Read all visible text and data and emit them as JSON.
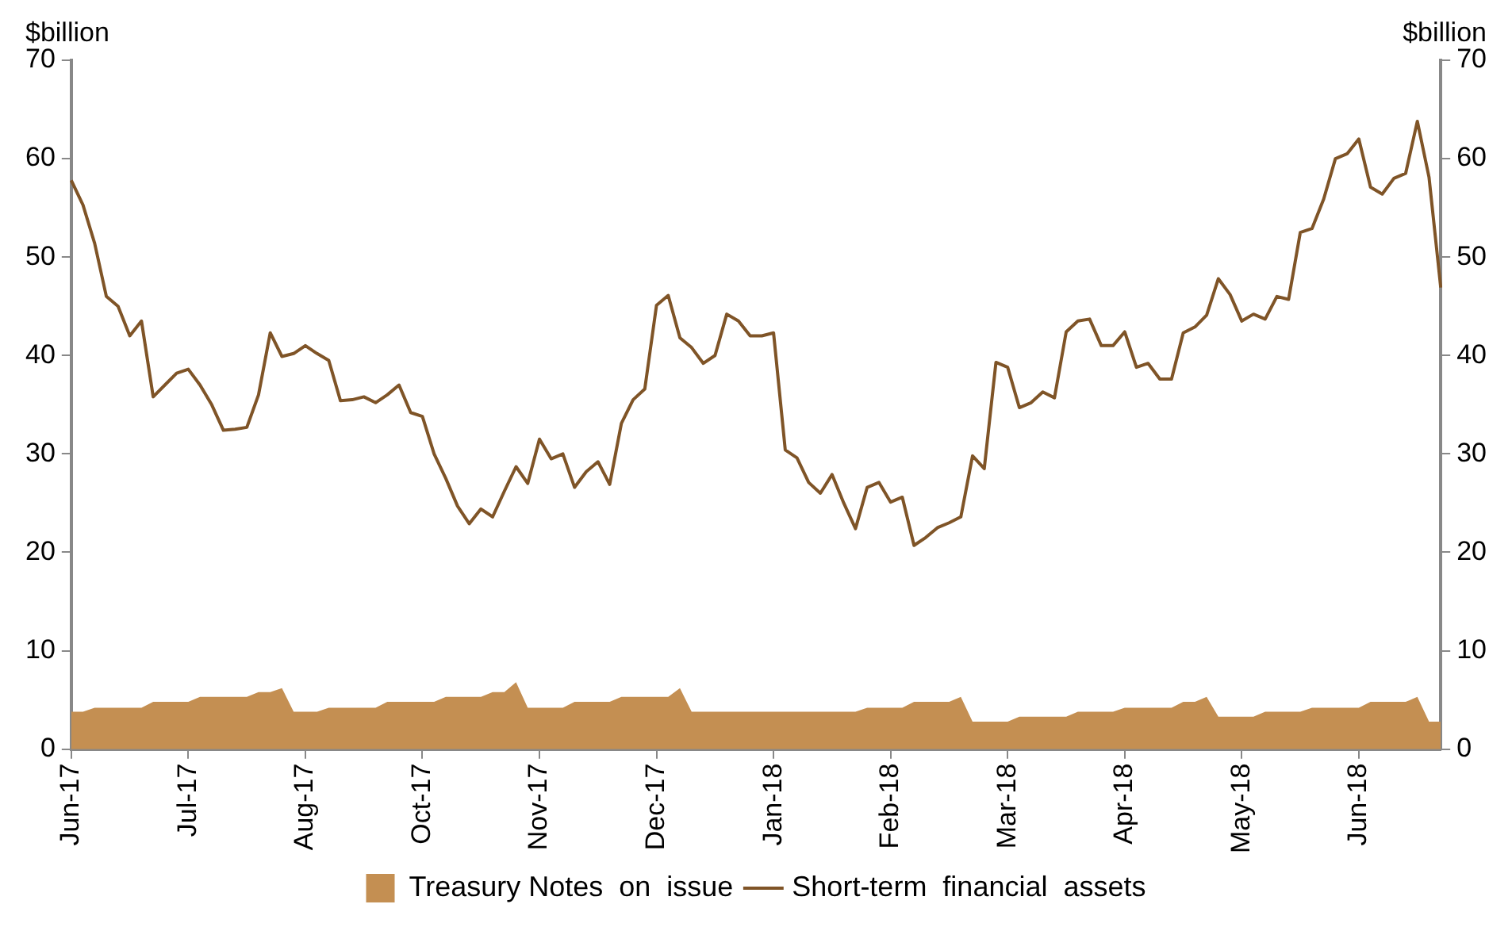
{
  "chart_data": {
    "type": "line",
    "ylabel": "$billion",
    "y2label": "$billion",
    "categories": [
      "Jun-17",
      null,
      null,
      null,
      null,
      null,
      null,
      null,
      null,
      null,
      "Jul-17",
      null,
      null,
      null,
      null,
      null,
      null,
      null,
      null,
      null,
      "Aug-17",
      null,
      null,
      null,
      null,
      null,
      null,
      null,
      null,
      null,
      "Oct-17",
      null,
      null,
      null,
      null,
      null,
      null,
      null,
      null,
      null,
      "Nov-17",
      null,
      null,
      null,
      null,
      null,
      null,
      null,
      null,
      null,
      "Dec-17",
      null,
      null,
      null,
      null,
      null,
      null,
      null,
      null,
      null,
      "Jan-18",
      null,
      null,
      null,
      null,
      null,
      null,
      null,
      null,
      null,
      "Feb-18",
      null,
      null,
      null,
      null,
      null,
      null,
      null,
      null,
      null,
      "Mar-18",
      null,
      null,
      null,
      null,
      null,
      null,
      null,
      null,
      null,
      "Apr-18",
      null,
      null,
      null,
      null,
      null,
      null,
      null,
      null,
      null,
      "May-18",
      null,
      null,
      null,
      null,
      null,
      null,
      null,
      null,
      null,
      "Jun-18",
      null,
      null,
      null,
      null,
      null,
      null,
      null
    ],
    "ylim": [
      0,
      70
    ],
    "yticks": [
      0,
      10,
      20,
      30,
      40,
      50,
      60,
      70
    ],
    "y2lim": [
      0,
      70
    ],
    "y2ticks": [
      0,
      10,
      20,
      30,
      40,
      50,
      60,
      70
    ],
    "grid": false,
    "legend": "bottom",
    "series": [
      {
        "name": "Treasury Notes  on  issue",
        "type": "area",
        "color": "#c48f52",
        "values": [
          3.8,
          3.8,
          4.2,
          4.2,
          4.2,
          4.2,
          4.2,
          4.8,
          4.8,
          4.8,
          4.8,
          5.3,
          5.3,
          5.3,
          5.3,
          5.3,
          5.8,
          5.8,
          6.2,
          3.8,
          3.8,
          3.8,
          4.2,
          4.2,
          4.2,
          4.2,
          4.2,
          4.8,
          4.8,
          4.8,
          4.8,
          4.8,
          5.3,
          5.3,
          5.3,
          5.3,
          5.8,
          5.8,
          6.8,
          4.2,
          4.2,
          4.2,
          4.2,
          4.8,
          4.8,
          4.8,
          4.8,
          5.3,
          5.3,
          5.3,
          5.3,
          5.3,
          6.2,
          3.8,
          3.8,
          3.8,
          3.8,
          3.8,
          3.8,
          3.8,
          3.8,
          3.8,
          3.8,
          3.8,
          3.8,
          3.8,
          3.8,
          3.8,
          4.2,
          4.2,
          4.2,
          4.2,
          4.8,
          4.8,
          4.8,
          4.8,
          5.3,
          2.8,
          2.8,
          2.8,
          2.8,
          3.3,
          3.3,
          3.3,
          3.3,
          3.3,
          3.8,
          3.8,
          3.8,
          3.8,
          4.2,
          4.2,
          4.2,
          4.2,
          4.2,
          4.8,
          4.8,
          5.3,
          3.3,
          3.3,
          3.3,
          3.3,
          3.8,
          3.8,
          3.8,
          3.8,
          4.2,
          4.2,
          4.2,
          4.2,
          4.2,
          4.8,
          4.8,
          4.8,
          4.8,
          5.3,
          2.8,
          2.8
        ]
      },
      {
        "name": "Short-term  financial  assets",
        "color": "#7f5427",
        "values": [
          57.8,
          55.3,
          51.4,
          46.0,
          45.0,
          42.0,
          43.5,
          35.8,
          37.0,
          38.2,
          38.6,
          37.0,
          35.0,
          32.4,
          32.5,
          32.7,
          36.0,
          42.3,
          39.9,
          40.2,
          41.0,
          40.2,
          39.5,
          35.4,
          35.5,
          35.8,
          35.2,
          36.0,
          37.0,
          34.2,
          33.8,
          30.0,
          27.5,
          24.7,
          22.9,
          24.4,
          23.6,
          26.2,
          28.7,
          27.0,
          31.5,
          29.5,
          30.0,
          26.6,
          28.2,
          29.2,
          26.9,
          33.1,
          35.5,
          36.6,
          45.1,
          46.1,
          41.8,
          40.8,
          39.2,
          40.0,
          44.2,
          43.5,
          42.0,
          42.0,
          42.3,
          30.4,
          29.6,
          27.1,
          26.0,
          27.9,
          25.0,
          22.4,
          26.6,
          27.1,
          25.1,
          25.6,
          20.7,
          21.5,
          22.5,
          23.0,
          23.6,
          29.8,
          28.5,
          39.3,
          38.8,
          34.7,
          35.2,
          36.3,
          35.7,
          42.4,
          43.5,
          43.7,
          41.0,
          41.0,
          42.4,
          38.8,
          39.2,
          37.6,
          37.6,
          42.3,
          42.9,
          44.1,
          47.8,
          46.2,
          43.5,
          44.2,
          43.7,
          46.0,
          45.7,
          52.5,
          52.9,
          55.9,
          60.0,
          60.5,
          62.0,
          57.1,
          56.4,
          58.0,
          58.5,
          63.8,
          58.1,
          46.9
        ]
      }
    ]
  }
}
